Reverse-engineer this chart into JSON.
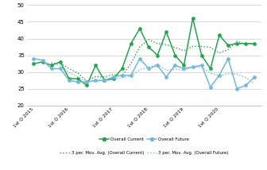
{
  "overall_current": [
    32.5,
    33.0,
    32.0,
    33.0,
    28.0,
    28.0,
    26.0,
    32.0,
    27.5,
    28.0,
    31.0,
    38.5,
    43.0,
    37.5,
    35.0,
    42.0,
    35.0,
    32.0,
    46.0,
    35.0,
    31.0,
    41.0,
    38.0,
    38.5,
    38.5,
    38.5
  ],
  "overall_future": [
    34.0,
    33.5,
    31.0,
    31.0,
    27.5,
    27.0,
    27.0,
    27.5,
    27.5,
    28.5,
    29.0,
    29.0,
    34.0,
    31.0,
    32.0,
    28.5,
    32.0,
    31.0,
    31.5,
    32.0,
    25.5,
    29.0,
    34.0,
    25.0,
    26.0,
    28.5
  ],
  "x_tick_pos": [
    0,
    4,
    9,
    13,
    17,
    21
  ],
  "x_tick_labels": [
    "1st Q 2015",
    "1st Q 2016",
    "1st Q 2017",
    "1st Q 2018",
    "1st Q 2019",
    "1st Q 2020"
  ],
  "ylim": [
    20.0,
    50.0
  ],
  "yticks": [
    20.0,
    25.0,
    30.0,
    35.0,
    40.0,
    45.0,
    50.0
  ],
  "color_current": "#21a64a",
  "color_future": "#70b8e0",
  "bg_color": "#ffffff",
  "grid_color": "#cccccc",
  "legend_current": "Overall Current",
  "legend_future": "Overall Future",
  "legend_cur_ma": "3 per. Mov. Avg. (Overall Current)",
  "legend_fut_ma": "3 per. Mov. Avg. (Overall Future)"
}
